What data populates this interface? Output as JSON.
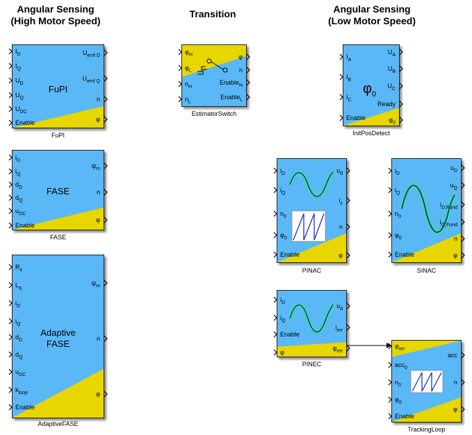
{
  "headings": {
    "high_line1": "Angular Sensing",
    "high_line2": "(High Motor Speed)",
    "transition": "Transition",
    "low_line1": "Angular Sensing",
    "low_line2": "(Low Motor Speed)"
  },
  "blocks": {
    "fupi": {
      "name": "FuPI",
      "label": "FuPI",
      "inputs": [
        "I_D",
        "I_Q",
        "U_D",
        "U_Q",
        "U_DC",
        "Enable"
      ],
      "outputs": [
        "U_emf D",
        "U_emf Q",
        "n",
        "φ"
      ]
    },
    "fase": {
      "name": "FASE",
      "label": "FASE",
      "inputs": [
        "i_D",
        "i_Q",
        "d_D",
        "d_Q",
        "u_DC",
        "Enable"
      ],
      "outputs": [
        "ψ_m",
        "n",
        "φ"
      ]
    },
    "adaptive": {
      "name": "AdaptiveFASE",
      "label_line1": "Adaptive",
      "label_line2": "FASE",
      "inputs": [
        "R_s",
        "L_q",
        "i_D",
        "i_Q",
        "d_D",
        "d_Q",
        "u_DC",
        "k_loop",
        "Enable"
      ],
      "outputs": [
        "ψ_m",
        "n",
        "φ"
      ]
    },
    "switch": {
      "name": "EstimatorSwitch",
      "inputs": [
        "φ_H",
        "φ_L",
        "n_H",
        "n_L"
      ],
      "outputs": [
        "φ",
        "n",
        "Enable_H",
        "Enable_L"
      ]
    },
    "initpos": {
      "name": "InitPosDetect",
      "label": "φ0",
      "inputs": [
        "I_A",
        "I_B",
        "I_C",
        "Enable"
      ],
      "outputs": [
        "U_A",
        "U_B",
        "U_C",
        "Ready",
        "φ_0"
      ]
    },
    "pinac": {
      "name": "PINAC",
      "inputs": [
        "i_D",
        "i_Q",
        "n_0",
        "φ_0",
        "Enable"
      ],
      "outputs": [
        "u_d",
        "i_c",
        "n",
        "φ"
      ]
    },
    "sinac": {
      "name": "SINAC",
      "inputs": [
        "i_D",
        "i_Q",
        "n_0",
        "φ_0",
        "Enable"
      ],
      "outputs": [
        "u_D",
        "u_Q",
        "i_D,Fund",
        "i_Q,Fund",
        "n",
        "φ"
      ]
    },
    "pinec": {
      "name": "PINEC",
      "inputs": [
        "i_D",
        "i_Q",
        "Enable",
        "φ"
      ],
      "outputs": [
        "u_d",
        "i_err",
        "φ_err"
      ]
    },
    "tracking": {
      "name": "TrackingLoop",
      "inputs": [
        "φ_err",
        "acc_0",
        "n_0",
        "φ_0",
        "Enable"
      ],
      "outputs": [
        "acc",
        "n",
        "φ"
      ]
    }
  },
  "colors": {
    "block_blue": "#5ab8f7",
    "block_yellow": "#e8d600",
    "wave_green": "#3de08a",
    "wave_blue": "#1a2fbf",
    "line": "#000000"
  }
}
